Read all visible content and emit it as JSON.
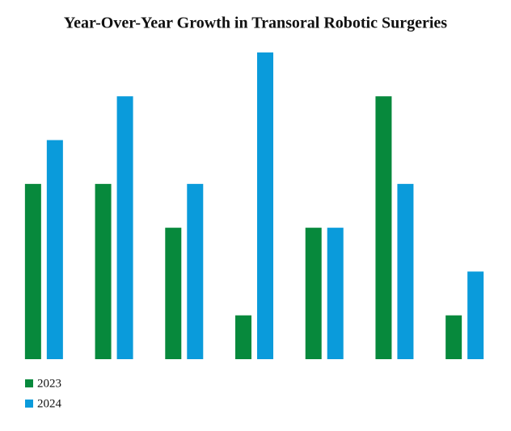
{
  "chart_data": {
    "type": "bar",
    "title": "Year-Over-Year Growth in Transoral Robotic Surgeries",
    "categories": [
      null,
      null,
      null,
      null,
      null,
      null,
      null
    ],
    "series": [
      {
        "name": "2023",
        "color": "#07893c",
        "values": [
          4,
          4,
          3,
          1,
          3,
          6,
          1
        ]
      },
      {
        "name": "2024",
        "color": "#0a9bdb",
        "values": [
          5,
          6,
          4,
          7,
          3,
          4,
          2
        ]
      }
    ],
    "legend": "bottom-left"
  }
}
